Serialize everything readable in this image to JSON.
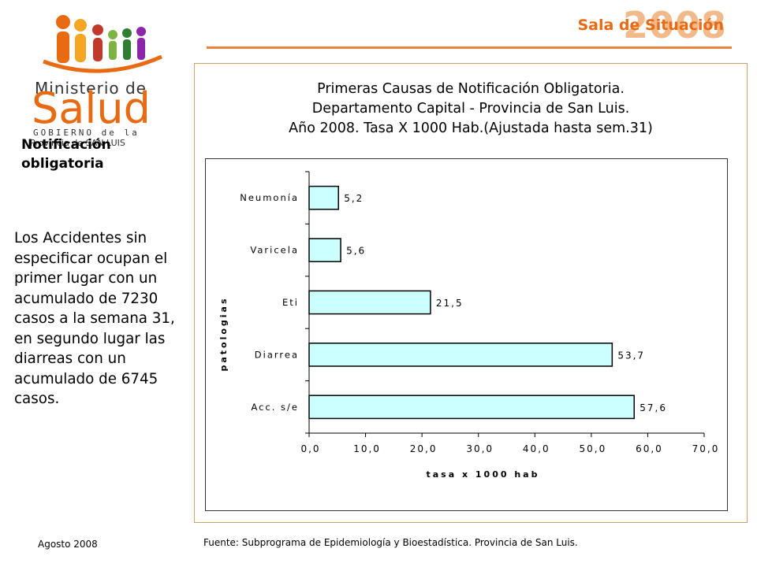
{
  "header": {
    "year": "2008",
    "sala": "Sala de Situación",
    "accent_color": "#e86a12"
  },
  "logo": {
    "ministerio": "Ministerio de",
    "salud": "Salud",
    "gobierno": "GOBIERNO de la",
    "provincia": "Provincia de SAN LUIS"
  },
  "section_title": "Notificación obligatoria",
  "side_text": "Los Accidentes sin especificar ocupan el primer lugar con un acumulado de 7230 casos a la semana 31, en segundo lugar las diarreas con un acumulado de 6745 casos.",
  "footer": {
    "date": "Agosto 2008",
    "source": "Fuente: Subprograma de Epidemiología y Bioestadística. Provincia de San Luis."
  },
  "chart_data": {
    "type": "bar",
    "orientation": "horizontal",
    "title_lines": [
      "Primeras Causas de Notificación Obligatoria.",
      "Departamento Capital - Provincia de San Luis.",
      "Año 2008. Tasa X 1000 Hab.(Ajustada hasta sem.31)"
    ],
    "categories": [
      "Neumonía",
      "Varicela",
      "Eti",
      "Diarrea",
      "Acc. s/e"
    ],
    "values": [
      5.2,
      5.6,
      21.5,
      53.7,
      57.6
    ],
    "data_labels": [
      "5,2",
      "5,6",
      "21,5",
      "53,7",
      "57,6"
    ],
    "xlabel": "tasa x 1000 hab",
    "ylabel": "patologias",
    "xlim": [
      0,
      70
    ],
    "xticks": [
      0,
      10,
      20,
      30,
      40,
      50,
      60,
      70
    ],
    "xtick_labels": [
      "0,0",
      "10,0",
      "20,0",
      "30,0",
      "40,0",
      "50,0",
      "60,0",
      "70,0"
    ],
    "grid": false,
    "bar_color": "#ccffff",
    "bar_border": "#000000"
  }
}
